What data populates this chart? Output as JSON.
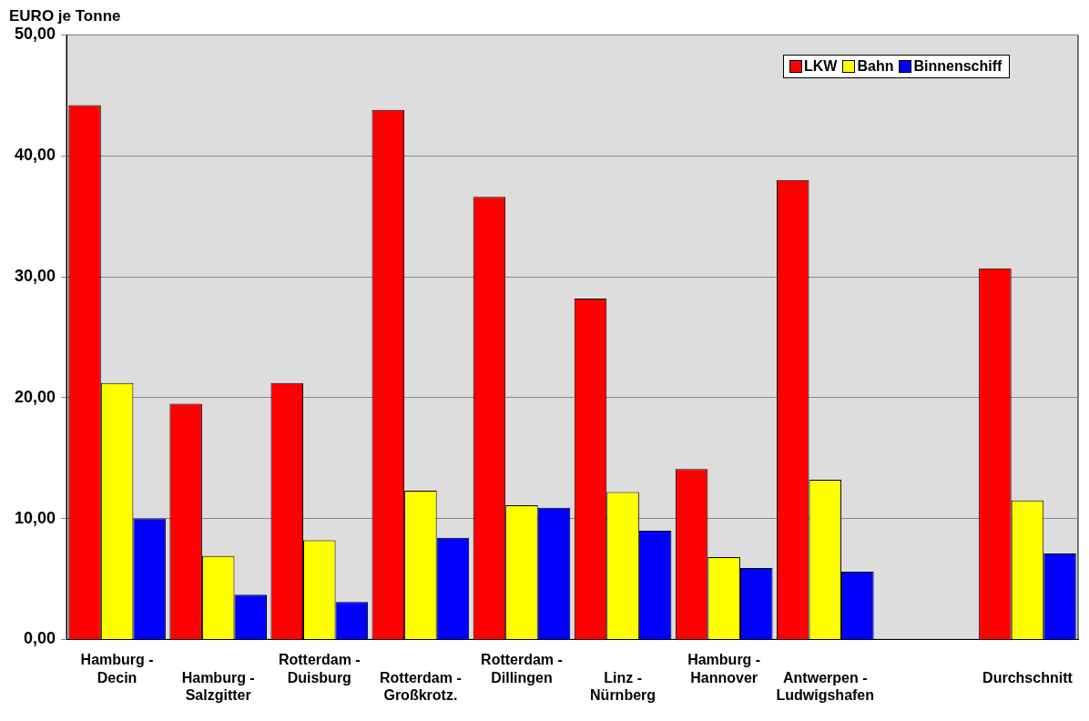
{
  "chart_data": {
    "type": "bar",
    "ylabel": "EURO je Tonne",
    "categories": [
      "Hamburg -\nDecin",
      "Hamburg -\nSalzgitter",
      "Rotterdam -\nDuisburg",
      "Rotterdam -\nGroßkrotz.",
      "Rotterdam -\nDillingen",
      "Linz -\nNürnberg",
      "Hamburg -\nHannover",
      "Antwerpen -\nLudwigshafen",
      null,
      "Durchschnitt"
    ],
    "series": [
      {
        "name": "LKW",
        "color": "#ff0000",
        "values": [
          44.2,
          19.5,
          21.2,
          43.8,
          36.6,
          28.2,
          14.1,
          38.0,
          null,
          30.7
        ]
      },
      {
        "name": "Bahn",
        "color": "#ffff00",
        "values": [
          21.2,
          6.9,
          8.2,
          12.3,
          11.1,
          12.2,
          6.8,
          13.2,
          null,
          11.5
        ]
      },
      {
        "name": "Binnenschiff",
        "color": "#0000ff",
        "values": [
          10.0,
          3.7,
          3.1,
          8.4,
          10.9,
          9.0,
          5.9,
          5.6,
          null,
          7.1
        ]
      }
    ],
    "ylim": [
      0,
      50
    ],
    "yticks": [
      {
        "value": 0,
        "label": "0,00"
      },
      {
        "value": 10,
        "label": "10,00"
      },
      {
        "value": 20,
        "label": "20,00"
      },
      {
        "value": 30,
        "label": "30,00"
      },
      {
        "value": 40,
        "label": "40,00"
      },
      {
        "value": 50,
        "label": "50,00"
      }
    ],
    "grid": "y",
    "legend": "top right"
  }
}
